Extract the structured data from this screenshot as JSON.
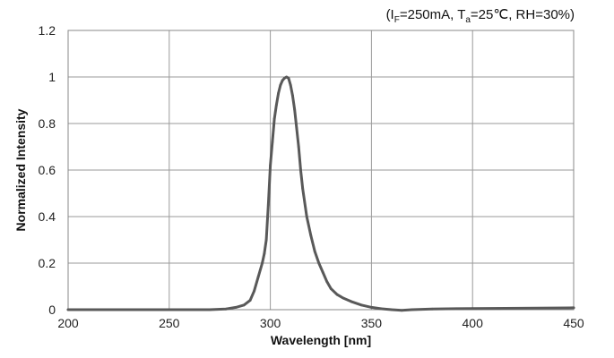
{
  "chart_data": {
    "type": "line",
    "subtitle": {
      "open": "(I",
      "if_sub": "F",
      "mid": "=250mA, T",
      "ta_sub": "a",
      "close": "=25℃, RH=30%)"
    },
    "xlabel": "Wavelength [nm]",
    "ylabel": "Normalized Intensity",
    "xlim": [
      200,
      450
    ],
    "ylim": [
      0,
      1.2
    ],
    "x_ticks": [
      "200",
      "250",
      "300",
      "350",
      "400",
      "450"
    ],
    "y_ticks": [
      "0",
      "0.2",
      "0.4",
      "0.6",
      "0.8",
      "1",
      "1.2"
    ],
    "grid": true,
    "line_color": "#595959",
    "series": [
      {
        "x": [
          200,
          250,
          270,
          278,
          283,
          287,
          290,
          292,
          294,
          296,
          297,
          298,
          299,
          300,
          301,
          302,
          303,
          304,
          305,
          306,
          307,
          308,
          309,
          310,
          311,
          312,
          313,
          314,
          315,
          316,
          318,
          320,
          322,
          324,
          326,
          328,
          330,
          333,
          336,
          340,
          345,
          350,
          355,
          360,
          365,
          370,
          380,
          400,
          450
        ],
        "y": [
          0,
          0,
          0,
          0.003,
          0.01,
          0.02,
          0.04,
          0.08,
          0.14,
          0.2,
          0.24,
          0.3,
          0.45,
          0.62,
          0.72,
          0.82,
          0.88,
          0.93,
          0.965,
          0.985,
          0.995,
          1.0,
          0.995,
          0.965,
          0.92,
          0.86,
          0.78,
          0.7,
          0.6,
          0.52,
          0.4,
          0.32,
          0.25,
          0.2,
          0.16,
          0.12,
          0.09,
          0.065,
          0.05,
          0.035,
          0.02,
          0.01,
          0.004,
          0,
          -0.003,
          0,
          0.003,
          0.005,
          0.008
        ]
      }
    ]
  }
}
